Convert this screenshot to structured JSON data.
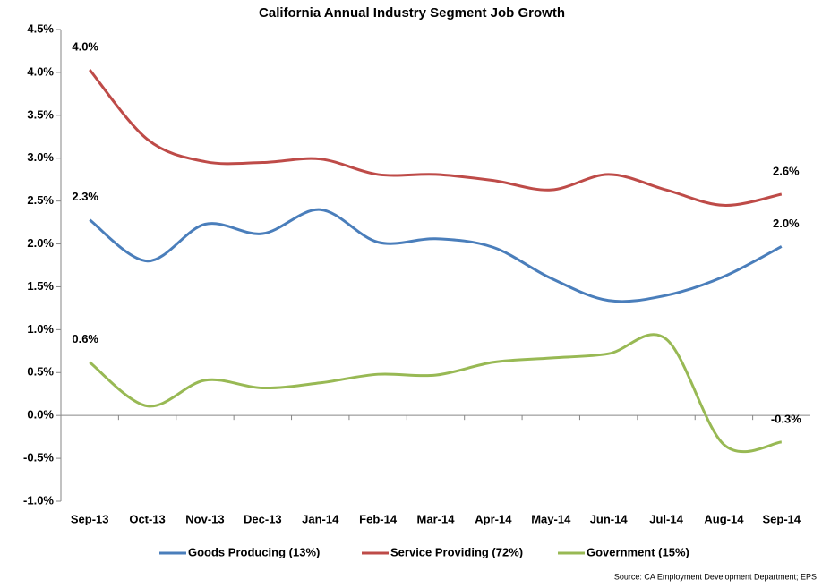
{
  "chart_data": {
    "type": "line",
    "title": "California Annual Industry Segment Job Growth",
    "categories": [
      "Sep-13",
      "Oct-13",
      "Nov-13",
      "Dec-13",
      "Jan-14",
      "Feb-14",
      "Mar-14",
      "Apr-14",
      "May-14",
      "Jun-14",
      "Jul-14",
      "Aug-14",
      "Sep-14"
    ],
    "series": [
      {
        "name": "Goods Producing (13%)",
        "color": "#4a7ebb",
        "values": [
          2.28,
          1.8,
          2.23,
          2.12,
          2.4,
          2.02,
          2.06,
          1.96,
          1.6,
          1.34,
          1.4,
          1.62,
          1.97
        ],
        "value_labels": [
          "2.3%",
          null,
          null,
          null,
          null,
          null,
          null,
          null,
          null,
          null,
          null,
          null,
          "2.0%"
        ]
      },
      {
        "name": "Service Providing (72%)",
        "color": "#be4b48",
        "values": [
          4.03,
          3.22,
          2.96,
          2.95,
          2.99,
          2.81,
          2.81,
          2.74,
          2.63,
          2.81,
          2.63,
          2.45,
          2.58
        ],
        "value_labels": [
          "4.0%",
          null,
          null,
          null,
          null,
          null,
          null,
          null,
          null,
          null,
          null,
          null,
          "2.6%"
        ]
      },
      {
        "name": "Government (15%)",
        "color": "#98b954",
        "values": [
          0.62,
          0.11,
          0.41,
          0.32,
          0.38,
          0.48,
          0.47,
          0.62,
          0.67,
          0.72,
          0.89,
          -0.34,
          -0.31
        ],
        "value_labels": [
          "0.6%",
          null,
          null,
          null,
          null,
          null,
          null,
          null,
          null,
          null,
          null,
          null,
          "-0.3%"
        ]
      }
    ],
    "ylim": [
      -1.0,
      4.5
    ],
    "yticks": [
      {
        "value": -1.0,
        "label": "-1.0%"
      },
      {
        "value": -0.5,
        "label": "-0.5%"
      },
      {
        "value": 0.0,
        "label": "0.0%"
      },
      {
        "value": 0.5,
        "label": "0.5%"
      },
      {
        "value": 1.0,
        "label": "1.0%"
      },
      {
        "value": 1.5,
        "label": "1.5%"
      },
      {
        "value": 2.0,
        "label": "2.0%"
      },
      {
        "value": 2.5,
        "label": "2.5%"
      },
      {
        "value": 3.0,
        "label": "3.0%"
      },
      {
        "value": 3.5,
        "label": "3.5%"
      },
      {
        "value": 4.0,
        "label": "4.0%"
      },
      {
        "value": 4.5,
        "label": "4.5%"
      }
    ],
    "grid": false,
    "smooth": true,
    "legend": "bottom",
    "source": "Source:  CA Employment Development Department; EPS"
  }
}
